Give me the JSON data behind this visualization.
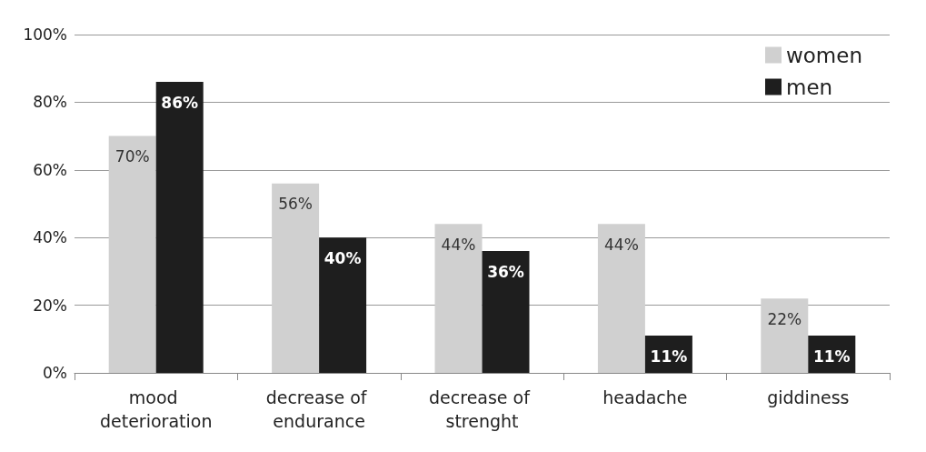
{
  "chart_data": {
    "type": "bar",
    "categories": [
      "mood deterioration",
      "decrease of endurance",
      "decrease of strenght",
      "headache",
      "giddiness"
    ],
    "series": [
      {
        "name": "women",
        "color": "#d0d0d0",
        "values": [
          70,
          56,
          44,
          44,
          22
        ],
        "value_labels": [
          "70%",
          "56%",
          "44%",
          "44%",
          "22%"
        ]
      },
      {
        "name": "men",
        "color": "#1e1e1e",
        "values": [
          86,
          40,
          36,
          11,
          11
        ],
        "value_labels": [
          "86%",
          "40%",
          "36%",
          "11%",
          "11%"
        ]
      }
    ],
    "ylim": [
      0,
      100
    ],
    "yticks": [
      {
        "value": 0,
        "label": "0%"
      },
      {
        "value": 20,
        "label": "20%"
      },
      {
        "value": 40,
        "label": "40%"
      },
      {
        "value": 60,
        "label": "60%"
      },
      {
        "value": 80,
        "label": "80%"
      },
      {
        "value": 100,
        "label": "100%"
      }
    ],
    "grid": "y",
    "legend": "top right"
  }
}
